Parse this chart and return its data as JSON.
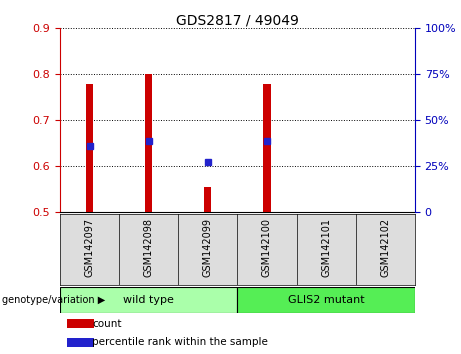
{
  "title": "GDS2817 / 49049",
  "samples": [
    "GSM142097",
    "GSM142098",
    "GSM142099",
    "GSM142100",
    "GSM142101",
    "GSM142102"
  ],
  "bar_tops": [
    0.779,
    0.801,
    0.555,
    0.779,
    0.5,
    0.5
  ],
  "bar_base": 0.5,
  "blue_dots": [
    0.644,
    0.655,
    0.609,
    0.655,
    null,
    null
  ],
  "ylim_left": [
    0.5,
    0.9
  ],
  "ylim_right": [
    0,
    100
  ],
  "yticks_left": [
    0.5,
    0.6,
    0.7,
    0.8,
    0.9
  ],
  "yticks_right": [
    0,
    25,
    50,
    75,
    100
  ],
  "bar_color": "#CC0000",
  "blue_color": "#2222CC",
  "bar_width": 0.12,
  "groups": [
    {
      "label": "wild type",
      "indices": [
        0,
        1,
        2
      ],
      "color": "#AAFFAA"
    },
    {
      "label": "GLIS2 mutant",
      "indices": [
        3,
        4,
        5
      ],
      "color": "#55EE55"
    }
  ],
  "group_label_prefix": "genotype/variation",
  "legend_items": [
    {
      "label": "count",
      "color": "#CC0000"
    },
    {
      "label": "percentile rank within the sample",
      "color": "#2222CC"
    }
  ],
  "left_axis_color": "#CC0000",
  "right_axis_color": "#0000BB",
  "sample_area_color": "#DDDDDD",
  "plot_bg": "#FFFFFF"
}
